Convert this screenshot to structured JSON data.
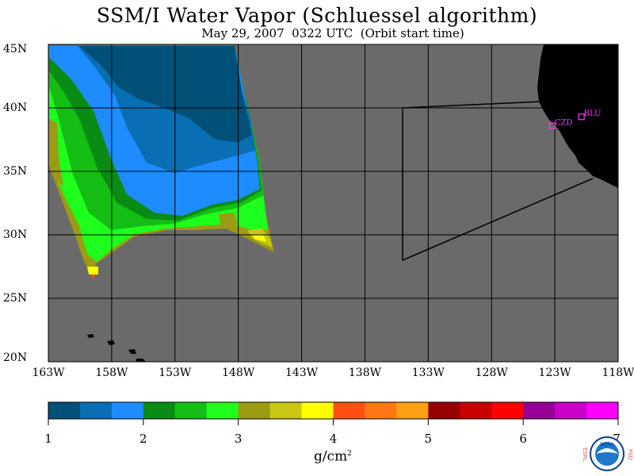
{
  "header": {
    "title": "SSM/I Water Vapor (Schluessel algorithm)",
    "subtitle": "May 29, 2007  0322 UTC  (Orbit start time)"
  },
  "map": {
    "lat_ticks": [
      "45N",
      "40N",
      "35N",
      "30N",
      "25N",
      "20N"
    ],
    "lon_ticks": [
      "163W",
      "158W",
      "153W",
      "148W",
      "143W",
      "138W",
      "133W",
      "128W",
      "123W",
      "118W"
    ],
    "lat_range": [
      20,
      45
    ],
    "lon_range": [
      -163,
      -118
    ],
    "stations": [
      {
        "code": "CZD",
        "lat": 38.6,
        "lon": -123.2
      },
      {
        "code": "BLU",
        "lat": 39.3,
        "lon": -120.9
      }
    ],
    "colors": {
      "background": "#6a6a6a",
      "land": "#000000",
      "station": "#ff33ff",
      "grid": "#000000"
    }
  },
  "colorbar": {
    "ticks": [
      "1",
      "2",
      "3",
      "4",
      "5",
      "6",
      "7"
    ],
    "range": [
      1,
      7
    ],
    "unit_base": "g/cm",
    "unit_exp": "2",
    "colors": [
      "#005078",
      "#0a6eb4",
      "#1e8cff",
      "#0a8c14",
      "#14be14",
      "#1eff1e",
      "#9b9b14",
      "#c8c814",
      "#ffff00",
      "#ff5014",
      "#ff7814",
      "#ffa014",
      "#960000",
      "#c80000",
      "#ff0000",
      "#960096",
      "#c800c8",
      "#ff00ff"
    ]
  },
  "logo": {
    "left_text": "ESRL",
    "right_text": "PSD",
    "center_text": "NOAA"
  }
}
